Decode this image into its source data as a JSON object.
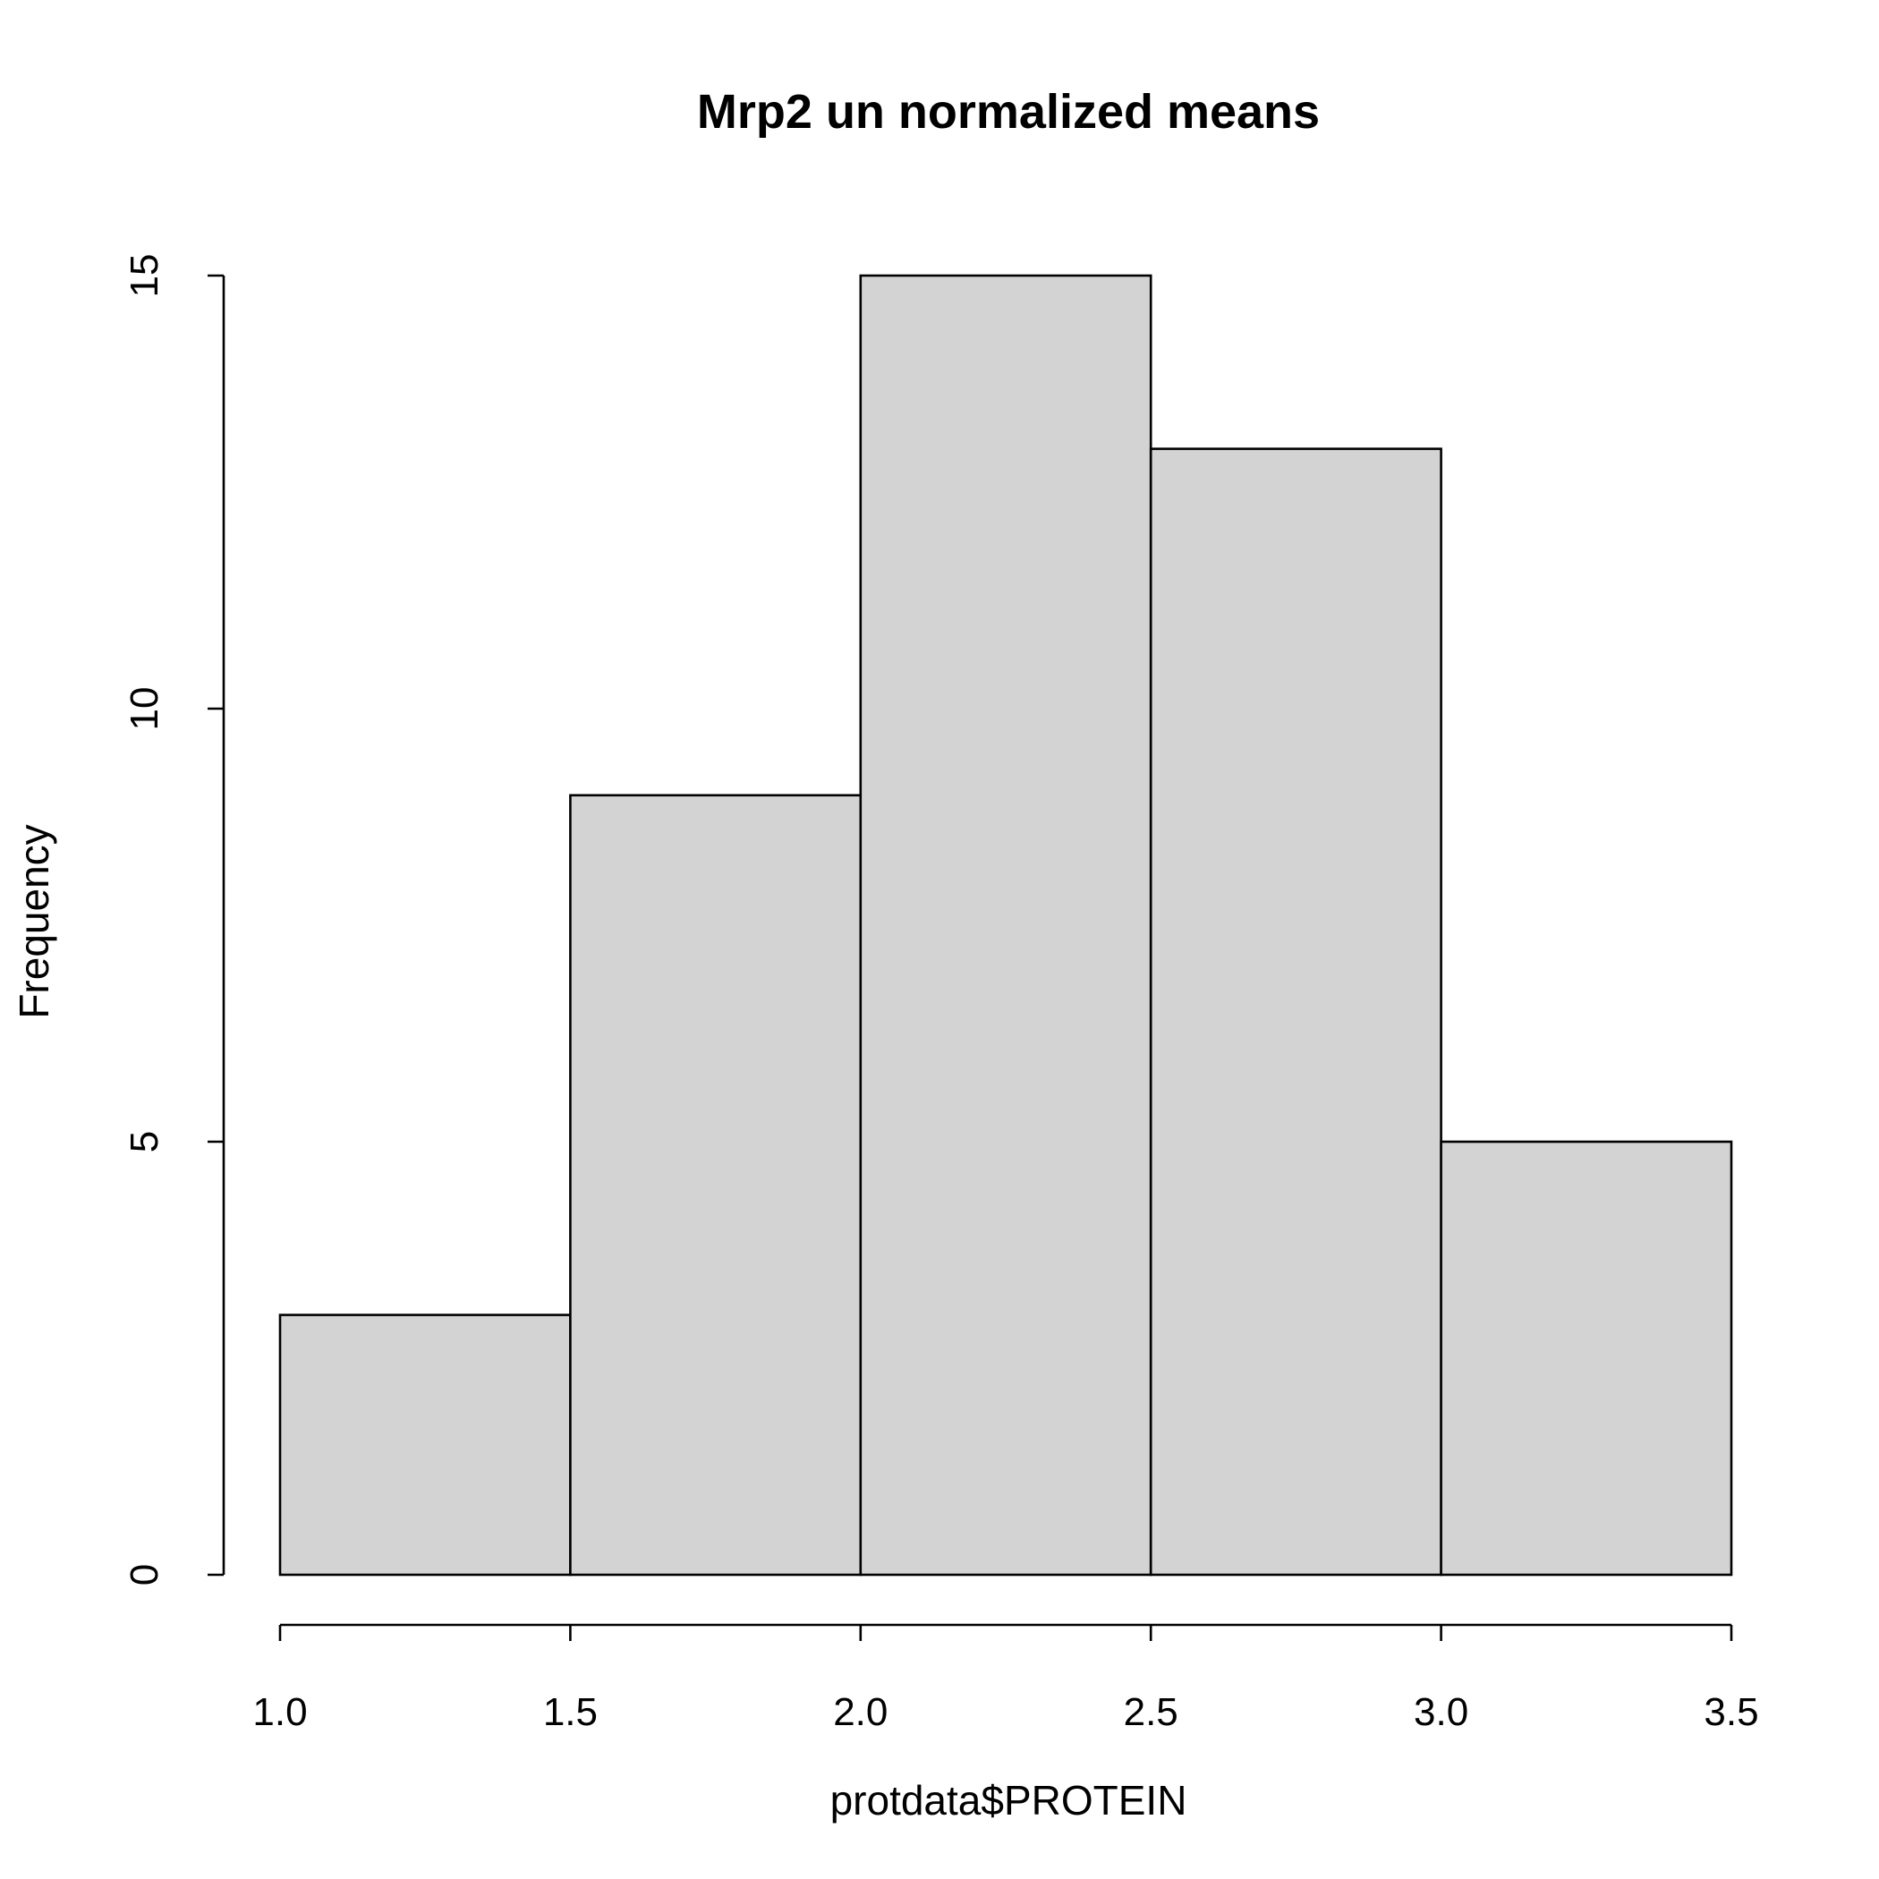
{
  "chart_data": {
    "type": "bar",
    "title": "Mrp2 un normalized means",
    "xlabel": "protdata$PROTEIN",
    "ylabel": "Frequency",
    "bins": [
      {
        "start": 1.0,
        "end": 1.5,
        "count": 3
      },
      {
        "start": 1.5,
        "end": 2.0,
        "count": 9
      },
      {
        "start": 2.0,
        "end": 2.5,
        "count": 15
      },
      {
        "start": 2.5,
        "end": 3.0,
        "count": 13
      },
      {
        "start": 3.0,
        "end": 3.5,
        "count": 5
      }
    ],
    "xlim": [
      1.0,
      3.5
    ],
    "ylim": [
      0,
      15
    ],
    "x_ticks": [
      "1.0",
      "1.5",
      "2.0",
      "2.5",
      "3.0",
      "3.5"
    ],
    "y_ticks": [
      "0",
      "5",
      "10",
      "15"
    ],
    "bar_fill": "#d3d3d3",
    "grid": false,
    "legend": "none"
  }
}
